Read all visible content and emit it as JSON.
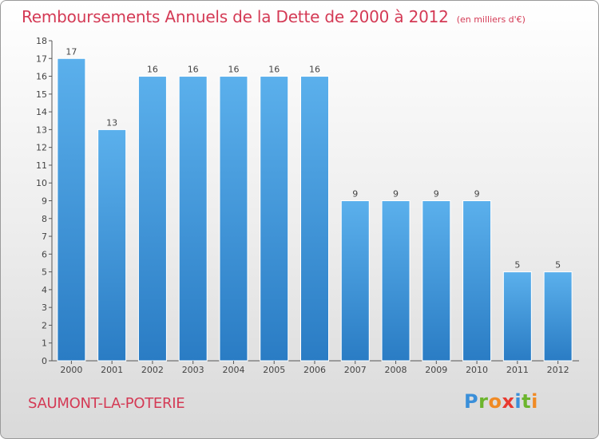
{
  "header": {
    "title": "Remboursements Annuels de la Dette de 2000 à 2012",
    "unit": "(en milliers d'€)"
  },
  "footer": {
    "commune": "SAUMONT-LA-POTERIE",
    "logo": {
      "letters": [
        "P",
        "r",
        "o",
        "x",
        "i",
        "t",
        "i"
      ],
      "colors": [
        "#3a8fd9",
        "#6cb52d",
        "#f08a24",
        "#e8392f",
        "#3a8fd9",
        "#6cb52d",
        "#f08a24"
      ]
    }
  },
  "colors": {
    "bar_light": "#5bb0ec",
    "bar_dark": "#2a7cc4",
    "accent": "#d43a55"
  },
  "chart_data": {
    "type": "bar",
    "categories": [
      "2000",
      "2001",
      "2002",
      "2003",
      "2004",
      "2005",
      "2006",
      "2007",
      "2008",
      "2009",
      "2010",
      "2011",
      "2012"
    ],
    "values": [
      17,
      13,
      16,
      16,
      16,
      16,
      16,
      9,
      9,
      9,
      9,
      5,
      5
    ],
    "data_labels": [
      "17",
      "13",
      "16",
      "16",
      "16",
      "16",
      "16",
      "9",
      "9",
      "9",
      "9",
      "5",
      "5"
    ],
    "yticks": [
      "0",
      "1",
      "2",
      "3",
      "4",
      "5",
      "6",
      "7",
      "8",
      "9",
      "10",
      "11",
      "12",
      "13",
      "14",
      "15",
      "16",
      "17",
      "18"
    ],
    "ylim": [
      0,
      18
    ],
    "grid": false,
    "title": "Remboursements Annuels de la Dette de 2000 à 2012",
    "xlabel": "",
    "ylabel": ""
  }
}
